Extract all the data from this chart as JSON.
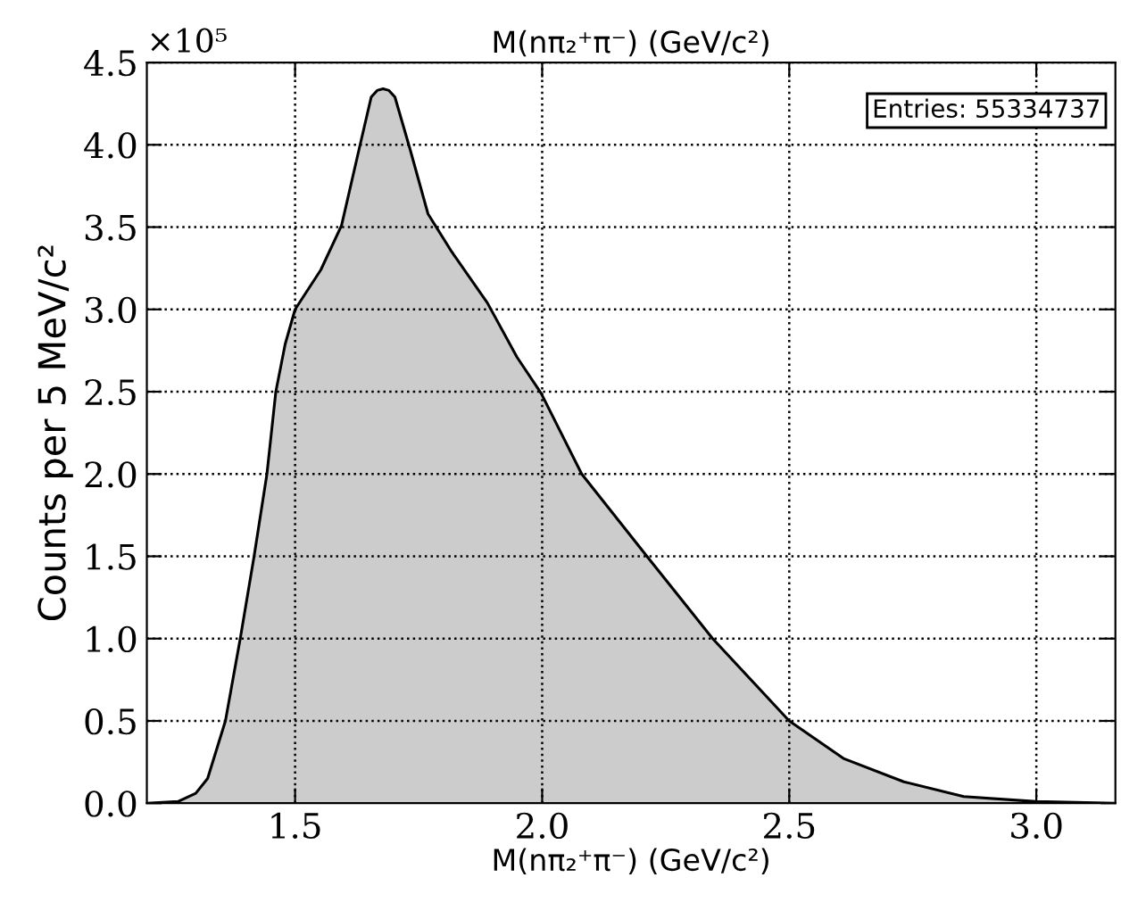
{
  "chart_data": {
    "type": "area",
    "title": "M(nπ₂⁺π⁻) (GeV/c²)",
    "xlabel": "M(nπ₂⁺π⁻) (GeV/c²)",
    "ylabel": "Counts per 5 MeV/c²",
    "annotations": [
      "×10⁵",
      "Entries: 55334737"
    ],
    "x": [
      1.2,
      1.263,
      1.299,
      1.323,
      1.359,
      1.389,
      1.417,
      1.443,
      1.461,
      1.48,
      1.5,
      1.552,
      1.594,
      1.63,
      1.654,
      1.666,
      1.678,
      1.69,
      1.702,
      1.732,
      1.769,
      1.817,
      1.889,
      1.949,
      1.998,
      2.08,
      2.212,
      2.345,
      2.5,
      2.611,
      2.732,
      2.853,
      3.0,
      3.16
    ],
    "series": [
      {
        "color": "#cccccc",
        "values": [
          0,
          0.01,
          0.06,
          0.15,
          0.5,
          1.0,
          1.5,
          2.0,
          2.5,
          2.79,
          3.0,
          3.24,
          3.51,
          3.98,
          4.29,
          4.33,
          4.34,
          4.33,
          4.29,
          3.98,
          3.58,
          3.35,
          3.04,
          2.71,
          2.49,
          2.0,
          1.5,
          1.0,
          0.5,
          0.27,
          0.13,
          0.04,
          0.01,
          0
        ]
      }
    ],
    "xlim": [
      1.2,
      3.16
    ],
    "ylim": [
      0,
      4.5
    ],
    "xticks": [
      1.5,
      {
        "value": 2,
        "label": "2.0"
      },
      2.5,
      {
        "value": 3,
        "label": "3.0"
      }
    ],
    "yticks": [
      {
        "value": 0,
        "label": "0.0"
      },
      0.5,
      {
        "value": 1,
        "label": "1.0"
      },
      1.5,
      {
        "value": 2,
        "label": "2.0"
      },
      2.5,
      {
        "value": 3,
        "label": "3.0"
      },
      3.5,
      {
        "value": 4,
        "label": "4.0"
      },
      4.5
    ],
    "grid": true,
    "line_style": "solid"
  }
}
